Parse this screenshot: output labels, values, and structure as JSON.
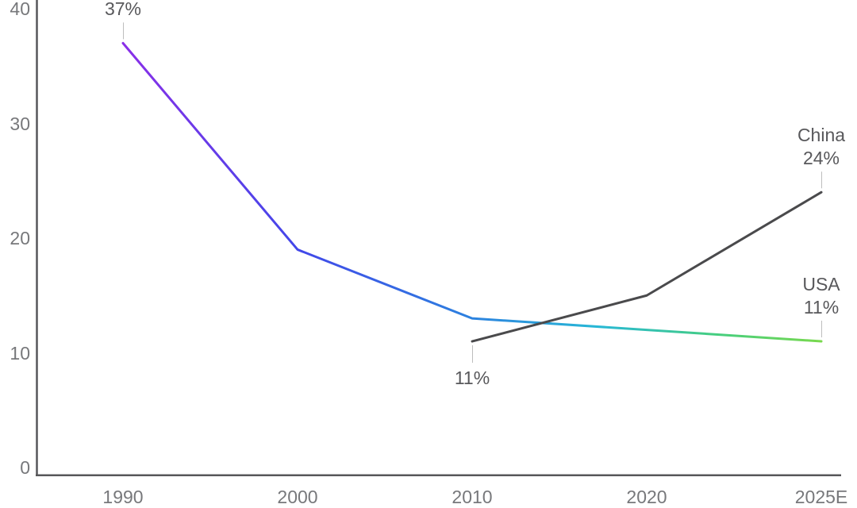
{
  "chart_data": {
    "type": "line",
    "title": "",
    "xlabel": "",
    "ylabel": "",
    "categories": [
      "1990",
      "2000",
      "2010",
      "2020",
      "2025E"
    ],
    "yticks": [
      "0",
      "10",
      "20",
      "30",
      "40"
    ],
    "ylim": [
      0,
      40
    ],
    "grid": false,
    "legend_position": "inline-annotations",
    "axis_color": "#57575A",
    "tick_label_color": "#77787B",
    "annotation_color": "#58585B",
    "connector_color": "#BDBDBD",
    "series": [
      {
        "name": "USA",
        "values": [
          37,
          19,
          13,
          12,
          11
        ],
        "style": "gradient",
        "gradient_stops": [
          "#8A2FE8",
          "#4247E9",
          "#2C82DF",
          "#28B8D6",
          "#45CE7F",
          "#79D94E"
        ]
      },
      {
        "name": "China",
        "values": [
          null,
          null,
          11,
          15,
          24
        ],
        "style": "solid",
        "color": "#4A4A4C"
      }
    ],
    "annotations": [
      {
        "text_lines": [
          "37%"
        ],
        "series": "USA",
        "category": "1990",
        "side": "above"
      },
      {
        "text_lines": [
          "China",
          "24%"
        ],
        "series": "China",
        "category": "2025E",
        "side": "above"
      },
      {
        "text_lines": [
          "USA",
          "11%"
        ],
        "series": "USA",
        "category": "2025E",
        "side": "above"
      },
      {
        "text_lines": [
          "11%"
        ],
        "series": "China",
        "category": "2010",
        "side": "below"
      }
    ]
  }
}
